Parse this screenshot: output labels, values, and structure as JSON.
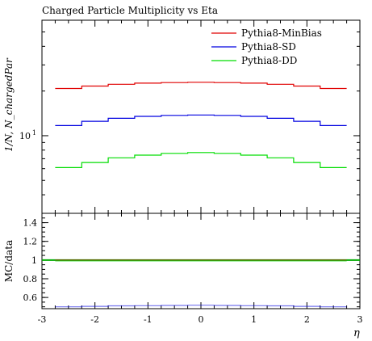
{
  "chart_data": [
    {
      "type": "line",
      "title": "Charged Particle Multiplicity vs Eta",
      "ylabel": "1/N, N_chargedPar",
      "xlim": [
        -3,
        3
      ],
      "ylim": [
        3,
        60
      ],
      "yscale": "log",
      "yticks": [
        {
          "value": 10,
          "label": "10",
          "sup": "1"
        }
      ],
      "legend": "top-right",
      "x": [
        -2.5,
        -2.0,
        -1.5,
        -1.0,
        -0.5,
        0.0,
        0.5,
        1.0,
        1.5,
        2.0,
        2.5
      ],
      "series": [
        {
          "name": "Pythia8-MinBias",
          "color": "#e00000",
          "values": [
            20.8,
            21.6,
            22.2,
            22.6,
            22.8,
            22.9,
            22.8,
            22.6,
            22.2,
            21.6,
            20.8
          ]
        },
        {
          "name": "Pythia8-SD",
          "color": "#0000e0",
          "values": [
            11.7,
            12.5,
            13.1,
            13.5,
            13.7,
            13.8,
            13.7,
            13.5,
            13.1,
            12.5,
            11.7
          ]
        },
        {
          "name": "Pythia8-DD",
          "color": "#00dd00",
          "values": [
            6.1,
            6.6,
            7.1,
            7.4,
            7.6,
            7.7,
            7.6,
            7.4,
            7.1,
            6.6,
            6.1
          ]
        }
      ]
    },
    {
      "type": "line",
      "ylabel": "MC/data",
      "xlabel": "η",
      "xlim": [
        -3,
        3
      ],
      "ylim": [
        0.48,
        1.5
      ],
      "xticks": [
        -3,
        -2,
        -1,
        0,
        1,
        2,
        3
      ],
      "yticks": [
        0.6,
        0.8,
        1,
        1.2,
        1.4
      ],
      "reference_line": {
        "value": 1,
        "color": "#00aa00"
      },
      "x": [
        -2.5,
        -2.0,
        -1.5,
        -1.0,
        -0.5,
        0.0,
        0.5,
        1.0,
        1.5,
        2.0,
        2.5
      ],
      "series": [
        {
          "name": "Pythia8-MinBias",
          "color": "#e00000",
          "values": [
            1.0,
            1.0,
            1.0,
            1.0,
            1.0,
            1.0,
            1.0,
            1.0,
            1.0,
            1.0,
            1.0
          ]
        },
        {
          "name": "Pythia8-SD",
          "color": "#0000e0",
          "values": [
            0.5,
            0.505,
            0.51,
            0.512,
            0.515,
            0.517,
            0.515,
            0.512,
            0.51,
            0.505,
            0.5
          ]
        },
        {
          "name": "Pythia8-DD",
          "color": "#00dd00",
          "values": [
            0.99,
            0.99,
            0.99,
            0.99,
            0.99,
            0.99,
            0.99,
            0.99,
            0.99,
            0.99,
            0.99
          ]
        }
      ]
    }
  ]
}
